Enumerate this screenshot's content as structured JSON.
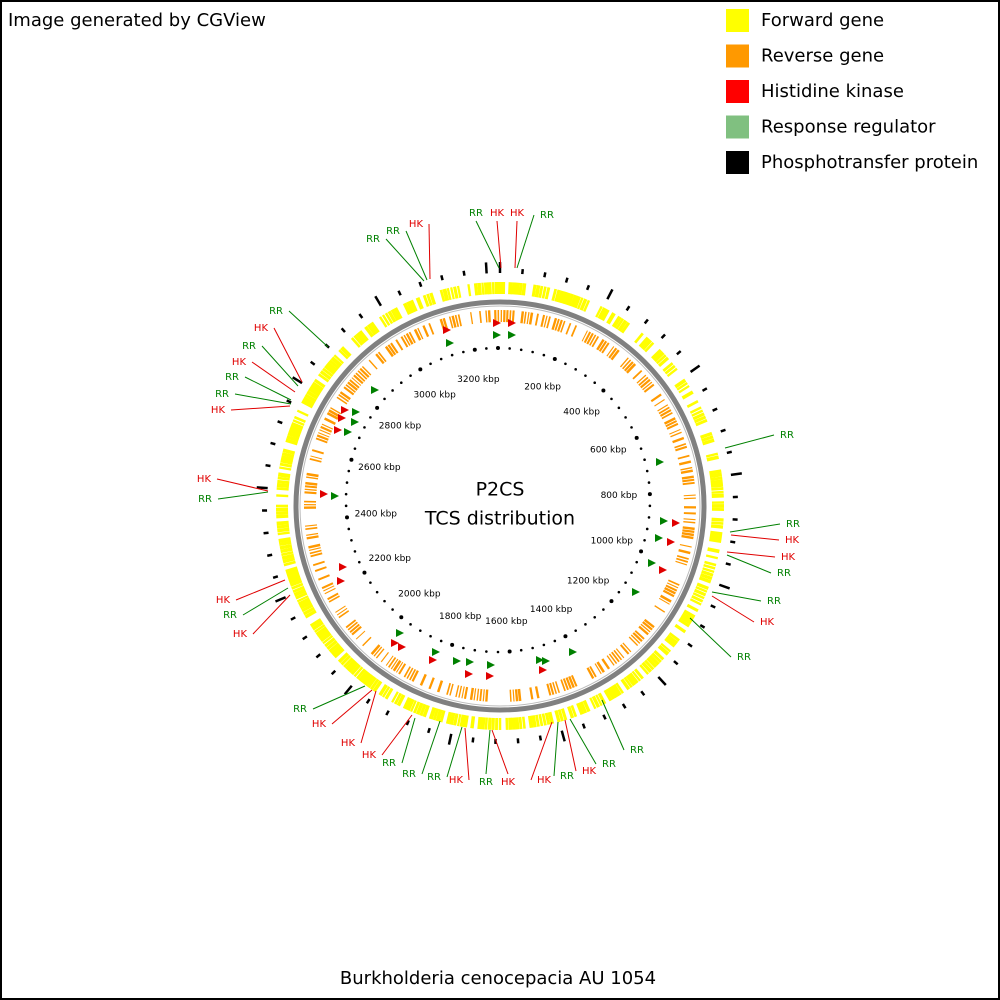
{
  "header": {
    "title": "Image generated by CGView"
  },
  "legend": [
    {
      "label": "Forward gene",
      "color": "#ffff00"
    },
    {
      "label": "Reverse gene",
      "color": "#ff9900"
    },
    {
      "label": "Histidine kinase",
      "color": "#ff0000"
    },
    {
      "label": "Response regulator",
      "color": "#80c080"
    },
    {
      "label": "Phosphotransfer protein",
      "color": "#000000"
    }
  ],
  "center": {
    "title": "P2CS",
    "subtitle": "TCS distribution"
  },
  "ruler": {
    "labels": [
      "200 kbp",
      "400 kbp",
      "600 kbp",
      "800 kbp",
      "1000 kbp",
      "1200 kbp",
      "1400 kbp",
      "1600 kbp",
      "1800 kbp",
      "2000 kbp",
      "2200 kbp",
      "2400 kbp",
      "2600 kbp",
      "2800 kbp",
      "3000 kbp",
      "3200 kbp"
    ]
  },
  "features": [
    {
      "label": "RR",
      "color": "#008000"
    },
    {
      "label": "HK",
      "color": "#e00000"
    },
    {
      "label": "HK",
      "color": "#e00000"
    },
    {
      "label": "RR",
      "color": "#008000"
    },
    {
      "label": "RR",
      "color": "#008000"
    },
    {
      "label": "RR",
      "color": "#008000"
    },
    {
      "label": "HK",
      "color": "#e00000"
    },
    {
      "label": "RR",
      "color": "#008000"
    },
    {
      "label": "HK",
      "color": "#e00000"
    },
    {
      "label": "RR",
      "color": "#008000"
    },
    {
      "label": "HK",
      "color": "#e00000"
    },
    {
      "label": "RR",
      "color": "#008000"
    },
    {
      "label": "RR",
      "color": "#008000"
    },
    {
      "label": "HK",
      "color": "#e00000"
    },
    {
      "label": "HK",
      "color": "#e00000"
    },
    {
      "label": "RR",
      "color": "#008000"
    },
    {
      "label": "HK",
      "color": "#e00000"
    },
    {
      "label": "RR",
      "color": "#008000"
    },
    {
      "label": "HK",
      "color": "#e00000"
    },
    {
      "label": "RR",
      "color": "#008000"
    },
    {
      "label": "HK",
      "color": "#e00000"
    },
    {
      "label": "HK",
      "color": "#e00000"
    },
    {
      "label": "HK",
      "color": "#e00000"
    },
    {
      "label": "RR",
      "color": "#008000"
    },
    {
      "label": "RR",
      "color": "#008000"
    },
    {
      "label": "RR",
      "color": "#008000"
    },
    {
      "label": "HK",
      "color": "#e00000"
    },
    {
      "label": "RR",
      "color": "#008000"
    },
    {
      "label": "HK",
      "color": "#e00000"
    },
    {
      "label": "HK",
      "color": "#e00000"
    },
    {
      "label": "RR",
      "color": "#008000"
    },
    {
      "label": "HK",
      "color": "#e00000"
    },
    {
      "label": "RR",
      "color": "#008000"
    },
    {
      "label": "RR",
      "color": "#008000"
    },
    {
      "label": "RR",
      "color": "#008000"
    },
    {
      "label": "RR",
      "color": "#008000"
    },
    {
      "label": "HK",
      "color": "#e00000"
    },
    {
      "label": "HK",
      "color": "#e00000"
    },
    {
      "label": "RR",
      "color": "#008000"
    },
    {
      "label": "RR",
      "color": "#008000"
    },
    {
      "label": "HK",
      "color": "#e00000"
    },
    {
      "label": "RR",
      "color": "#008000"
    }
  ],
  "footer": {
    "caption": "Burkholderia cenocepacia AU 1054"
  }
}
